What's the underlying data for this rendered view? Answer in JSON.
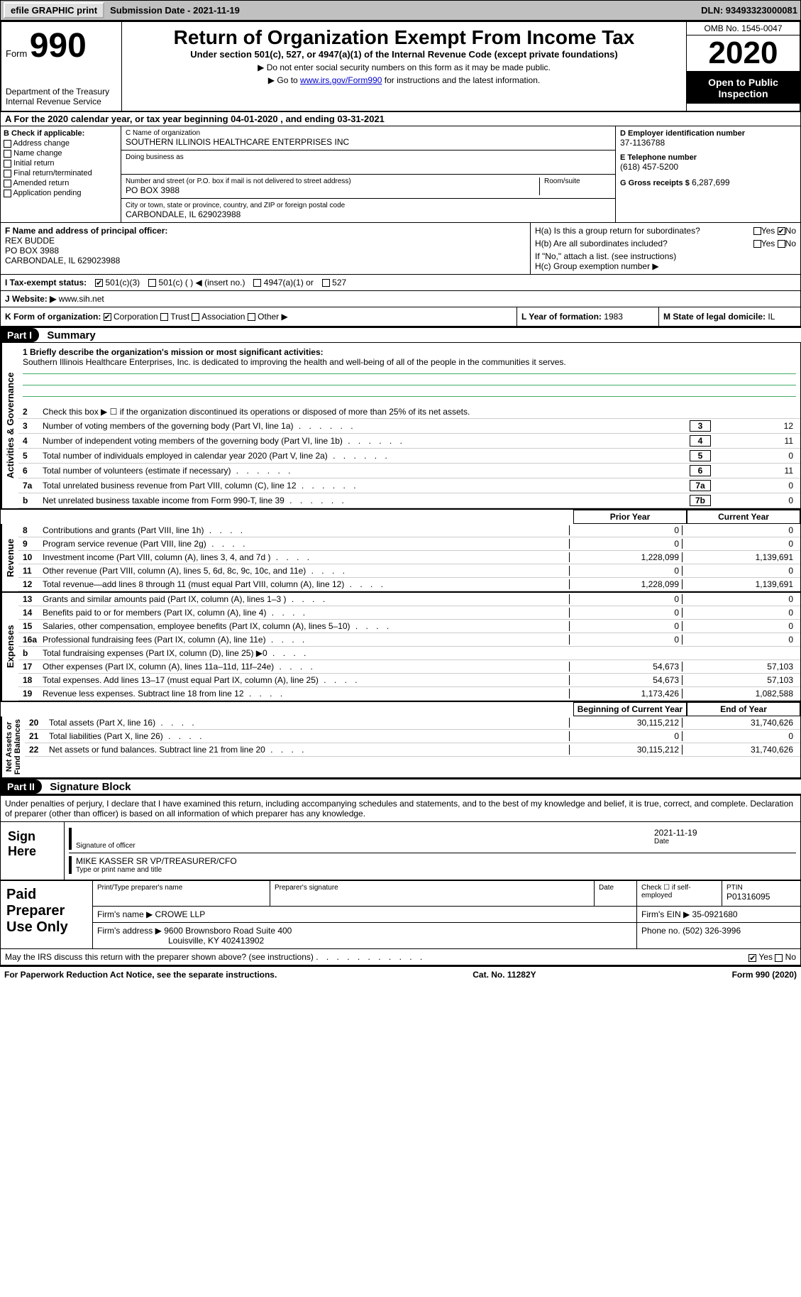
{
  "top": {
    "efile_btn": "efile GRAPHIC print",
    "submission": "Submission Date - 2021-11-19",
    "dln": "DLN: 93493323000081"
  },
  "header": {
    "form_label": "Form",
    "form_number": "990",
    "dept": "Department of the Treasury\nInternal Revenue Service",
    "title": "Return of Organization Exempt From Income Tax",
    "subtitle": "Under section 501(c), 527, or 4947(a)(1) of the Internal Revenue Code (except private foundations)",
    "note1": "▶ Do not enter social security numbers on this form as it may be made public.",
    "note2_pre": "▶ Go to ",
    "note2_link": "www.irs.gov/Form990",
    "note2_post": " for instructions and the latest information.",
    "omb": "OMB No. 1545-0047",
    "year": "2020",
    "open": "Open to Public Inspection"
  },
  "sectionA": "A For the 2020 calendar year, or tax year beginning 04-01-2020    , and ending 03-31-2021",
  "colB": {
    "title": "B Check if applicable:",
    "items": [
      "Address change",
      "Name change",
      "Initial return",
      "Final return/terminated",
      "Amended return",
      "Application pending"
    ]
  },
  "colC": {
    "name_label": "C Name of organization",
    "name": "SOUTHERN ILLINOIS HEALTHCARE ENTERPRISES INC",
    "dba_label": "Doing business as",
    "addr_label": "Number and street (or P.O. box if mail is not delivered to street address)",
    "room_label": "Room/suite",
    "addr": "PO BOX 3988",
    "city_label": "City or town, state or province, country, and ZIP or foreign postal code",
    "city": "CARBONDALE, IL  629023988"
  },
  "colD": {
    "ein_label": "D Employer identification number",
    "ein": "37-1136788",
    "phone_label": "E Telephone number",
    "phone": "(618) 457-5200",
    "gross_label": "G Gross receipts $",
    "gross": "6,287,699"
  },
  "rowF": {
    "label": "F Name and address of principal officer:",
    "name": "REX BUDDE",
    "addr1": "PO BOX 3988",
    "addr2": "CARBONDALE, IL  629023988"
  },
  "rowH": {
    "ha_label": "H(a)  Is this a group return for subordinates?",
    "hb_label": "H(b)  Are all subordinates included?",
    "hb_note": "If \"No,\" attach a list. (see instructions)",
    "hc_label": "H(c)  Group exemption number ▶",
    "yes": "Yes",
    "no": "No"
  },
  "rowI": {
    "label": "I  Tax-exempt status:",
    "o1": "501(c)(3)",
    "o2": "501(c) (  ) ◀ (insert no.)",
    "o3": "4947(a)(1) or",
    "o4": "527"
  },
  "rowJ": {
    "label": "J  Website: ▶",
    "value": "www.sih.net"
  },
  "rowK": {
    "label": "K Form of organization:",
    "o1": "Corporation",
    "o2": "Trust",
    "o3": "Association",
    "o4": "Other ▶",
    "l_label": "L Year of formation:",
    "l_val": "1983",
    "m_label": "M State of legal domicile:",
    "m_val": "IL"
  },
  "part1": {
    "header": "Part I",
    "title": "Summary",
    "line1_label": "1  Briefly describe the organization's mission or most significant activities:",
    "mission": "Southern Illinois Healthcare Enterprises, Inc. is dedicated to improving the health and well-being of all of the people in the communities it serves.",
    "line2": "Check this box ▶ ☐  if the organization discontinued its operations or disposed of more than 25% of its net assets.",
    "lines_gov": [
      {
        "n": "3",
        "d": "Number of voting members of the governing body (Part VI, line 1a)",
        "b": "3",
        "v": "12"
      },
      {
        "n": "4",
        "d": "Number of independent voting members of the governing body (Part VI, line 1b)",
        "b": "4",
        "v": "11"
      },
      {
        "n": "5",
        "d": "Total number of individuals employed in calendar year 2020 (Part V, line 2a)",
        "b": "5",
        "v": "0"
      },
      {
        "n": "6",
        "d": "Total number of volunteers (estimate if necessary)",
        "b": "6",
        "v": "11"
      },
      {
        "n": "7a",
        "d": "Total unrelated business revenue from Part VIII, column (C), line 12",
        "b": "7a",
        "v": "0"
      },
      {
        "n": "b",
        "d": "Net unrelated business taxable income from Form 990-T, line 39",
        "b": "7b",
        "v": "0"
      }
    ],
    "prior_hdr": "Prior Year",
    "current_hdr": "Current Year",
    "revenue": [
      {
        "n": "8",
        "d": "Contributions and grants (Part VIII, line 1h)",
        "p": "0",
        "c": "0"
      },
      {
        "n": "9",
        "d": "Program service revenue (Part VIII, line 2g)",
        "p": "0",
        "c": "0"
      },
      {
        "n": "10",
        "d": "Investment income (Part VIII, column (A), lines 3, 4, and 7d )",
        "p": "1,228,099",
        "c": "1,139,691"
      },
      {
        "n": "11",
        "d": "Other revenue (Part VIII, column (A), lines 5, 6d, 8c, 9c, 10c, and 11e)",
        "p": "0",
        "c": "0"
      },
      {
        "n": "12",
        "d": "Total revenue—add lines 8 through 11 (must equal Part VIII, column (A), line 12)",
        "p": "1,228,099",
        "c": "1,139,691"
      }
    ],
    "expenses": [
      {
        "n": "13",
        "d": "Grants and similar amounts paid (Part IX, column (A), lines 1–3 )",
        "p": "0",
        "c": "0"
      },
      {
        "n": "14",
        "d": "Benefits paid to or for members (Part IX, column (A), line 4)",
        "p": "0",
        "c": "0"
      },
      {
        "n": "15",
        "d": "Salaries, other compensation, employee benefits (Part IX, column (A), lines 5–10)",
        "p": "0",
        "c": "0"
      },
      {
        "n": "16a",
        "d": "Professional fundraising fees (Part IX, column (A), line 11e)",
        "p": "0",
        "c": "0"
      },
      {
        "n": "b",
        "d": "Total fundraising expenses (Part IX, column (D), line 25) ▶0",
        "p": "",
        "c": "",
        "grey": true
      },
      {
        "n": "17",
        "d": "Other expenses (Part IX, column (A), lines 11a–11d, 11f–24e)",
        "p": "54,673",
        "c": "57,103"
      },
      {
        "n": "18",
        "d": "Total expenses. Add lines 13–17 (must equal Part IX, column (A), line 25)",
        "p": "54,673",
        "c": "57,103"
      },
      {
        "n": "19",
        "d": "Revenue less expenses. Subtract line 18 from line 12",
        "p": "1,173,426",
        "c": "1,082,588"
      }
    ],
    "begin_hdr": "Beginning of Current Year",
    "end_hdr": "End of Year",
    "netassets": [
      {
        "n": "20",
        "d": "Total assets (Part X, line 16)",
        "p": "30,115,212",
        "c": "31,740,626"
      },
      {
        "n": "21",
        "d": "Total liabilities (Part X, line 26)",
        "p": "0",
        "c": "0"
      },
      {
        "n": "22",
        "d": "Net assets or fund balances. Subtract line 21 from line 20",
        "p": "30,115,212",
        "c": "31,740,626"
      }
    ],
    "side_gov": "Activities & Governance",
    "side_rev": "Revenue",
    "side_exp": "Expenses",
    "side_net": "Net Assets or\nFund Balances"
  },
  "part2": {
    "header": "Part II",
    "title": "Signature Block",
    "declaration": "Under penalties of perjury, I declare that I have examined this return, including accompanying schedules and statements, and to the best of my knowledge and belief, it is true, correct, and complete. Declaration of preparer (other than officer) is based on all information of which preparer has any knowledge.",
    "sign_here": "Sign Here",
    "sig_officer_label": "Signature of officer",
    "sig_date": "2021-11-19",
    "sig_date_label": "Date",
    "officer_name": "MIKE KASSER  SR VP/TREASURER/CFO",
    "officer_label": "Type or print name and title",
    "paid_prep": "Paid Preparer Use Only",
    "pp_name_label": "Print/Type preparer's name",
    "pp_sig_label": "Preparer's signature",
    "pp_date_label": "Date",
    "pp_check": "Check ☐ if self-employed",
    "ptin_label": "PTIN",
    "ptin": "P01316095",
    "firm_name_label": "Firm's name    ▶",
    "firm_name": "CROWE LLP",
    "firm_ein_label": "Firm's EIN ▶",
    "firm_ein": "35-0921680",
    "firm_addr_label": "Firm's address ▶",
    "firm_addr1": "9600 Brownsboro Road Suite 400",
    "firm_addr2": "Louisville, KY  402413902",
    "phone_label": "Phone no.",
    "phone": "(502) 326-3996",
    "discuss": "May the IRS discuss this return with the preparer shown above? (see instructions)",
    "yes": "Yes",
    "no": "No"
  },
  "footer": {
    "pra": "For Paperwork Reduction Act Notice, see the separate instructions.",
    "cat": "Cat. No. 11282Y",
    "form": "Form 990 (2020)"
  }
}
